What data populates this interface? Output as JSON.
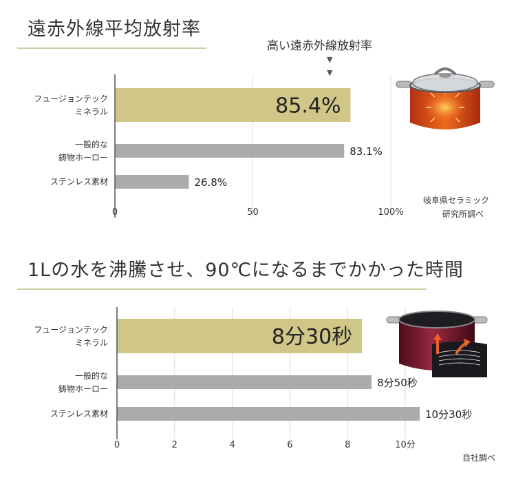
{
  "section1": {
    "title": "遠赤外線平均放射率",
    "callout": "高い遠赤外線放射率",
    "source_line1": "岐阜県セラミック",
    "source_line2": "研究所調べ"
  },
  "section2": {
    "title": "1Lの水を沸騰させ、90℃になるまでかかった時間",
    "source": "自社調べ"
  },
  "colors": {
    "highlight_bar": "#cfc688",
    "gray_bar": "#ababab",
    "gridline": "#dcdcdc",
    "axis": "#555555",
    "title_rule": "#cfcca0"
  },
  "icons": {
    "pot1": "orange-enamel-pot-with-glass-lid-icon",
    "pot2": "red-pot-with-heat-arrows-icon"
  },
  "chart_data": [
    {
      "type": "bar",
      "orientation": "horizontal",
      "title": "遠赤外線平均放射率",
      "categories": [
        [
          "フュージョンテック",
          "ミネラル"
        ],
        [
          "一般的な",
          "鋳物ホーロー"
        ],
        [
          "ステンレス素材"
        ]
      ],
      "values": [
        85.4,
        83.1,
        26.8
      ],
      "value_labels": [
        "85.4%",
        "83.1%",
        "26.8%"
      ],
      "highlight_index": 0,
      "xlim": [
        0,
        100
      ],
      "xticks": [
        0,
        50,
        100
      ],
      "xtick_labels": [
        "0",
        "50",
        "100%"
      ],
      "grid": true
    },
    {
      "type": "bar",
      "orientation": "horizontal",
      "title": "1Lの水を沸騰させ、90℃になるまでかかった時間",
      "categories": [
        [
          "フュージョンテック",
          "ミネラル"
        ],
        [
          "一般的な",
          "鋳物ホーロー"
        ],
        [
          "ステンレス素材"
        ]
      ],
      "values": [
        8.5,
        8.833,
        10.5
      ],
      "value_labels": [
        "8分30秒",
        "8分50秒",
        "10分30秒"
      ],
      "highlight_index": 0,
      "xlim": [
        0,
        10.5
      ],
      "xticks": [
        0,
        2,
        4,
        6,
        8,
        10
      ],
      "xtick_labels": [
        "0",
        "2",
        "4",
        "6",
        "8",
        "10分"
      ],
      "grid": true
    }
  ]
}
